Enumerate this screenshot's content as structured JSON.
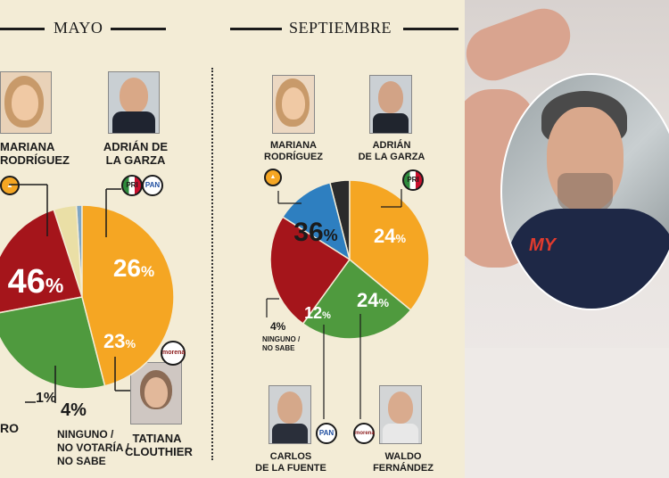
{
  "left_header": {
    "title": "MAYO"
  },
  "right_header": {
    "title": "SEPTIEMBRE"
  },
  "mayo": {
    "candidates": {
      "mariana": {
        "line1": "MARIANA",
        "line2": "RODRÍGUEZ"
      },
      "adrian": {
        "line1": "ADRIÁN DE",
        "line2": "LA GARZA"
      },
      "tatiana": {
        "line1": "TATIANA",
        "line2": "CLOUTHIER"
      }
    },
    "labels": {
      "mariana_pct": "46%",
      "adrian_pct": "26%",
      "tatiana_pct": "23%",
      "otro_pct": "1%",
      "otro_name": "RO",
      "ninguno_pct": "4%",
      "ninguno_line1": "NINGUNO /",
      "ninguno_line2": "NO VOTARÍA /",
      "ninguno_line3": "NO SABE"
    },
    "badges": {
      "pri": "PRI",
      "pan": "PAN",
      "morena": "morena"
    }
  },
  "septiembre": {
    "candidates": {
      "mariana": {
        "line1": "MARIANA",
        "line2": "RODRÍGUEZ"
      },
      "adrian": {
        "line1": "ADRIÁN",
        "line2": "DE LA GARZA"
      },
      "carlos": {
        "line1": "CARLOS",
        "line2": "DE LA FUENTE"
      },
      "waldo": {
        "line1": "WALDO",
        "line2": "FERNÁNDEZ"
      }
    },
    "labels": {
      "mariana_pct": "36%",
      "adrian_pct": "24%",
      "waldo_pct": "24%",
      "carlos_pct": "12%",
      "ninguno_pct": "4%",
      "ninguno_line1": "NINGUNO /",
      "ninguno_line2": "NO SABE"
    },
    "badges": {
      "pri": "PRI",
      "pan": "PAN",
      "morena": "morena"
    }
  },
  "photo": {
    "shirt_text": "MY"
  },
  "chart_data": [
    {
      "type": "pie",
      "title": "MAYO",
      "categories": [
        "Mariana Rodríguez",
        "Adrián de la Garza",
        "Tatiana Clouthier",
        "Ninguno / No votaría / No sabe",
        "Otro"
      ],
      "values": [
        46,
        26,
        23,
        4,
        1
      ],
      "colors": [
        "#f5a623",
        "#4f9a3e",
        "#a5151b",
        "#eadfa6",
        "#7fa6c4"
      ]
    },
    {
      "type": "pie",
      "title": "SEPTIEMBRE",
      "categories": [
        "Mariana Rodríguez",
        "Adrián de la Garza",
        "Waldo Fernández",
        "Carlos de la Fuente",
        "Ninguno / No sabe"
      ],
      "values": [
        36,
        24,
        24,
        12,
        4
      ],
      "colors": [
        "#f5a623",
        "#4f9a3e",
        "#a5151b",
        "#2e7fc0",
        "#2b2b2b"
      ]
    }
  ]
}
